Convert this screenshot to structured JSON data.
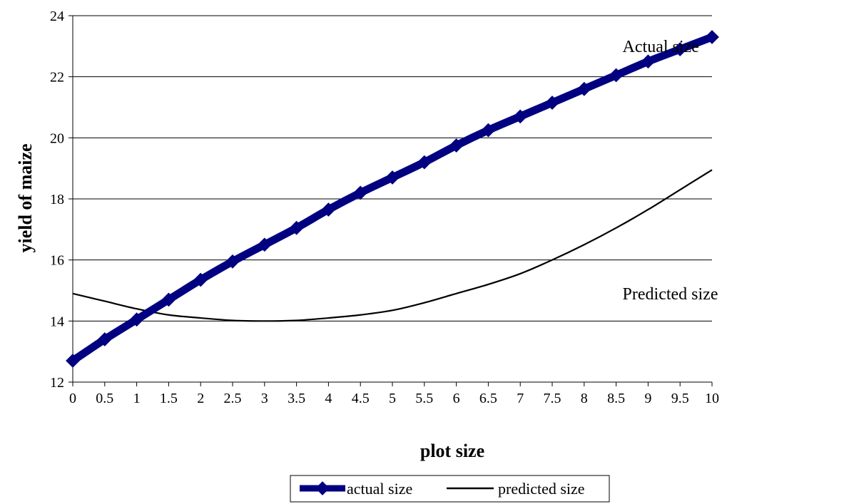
{
  "chart_data": {
    "type": "line",
    "title": "",
    "xlabel": "plot size",
    "ylabel": "yield of maize",
    "x": [
      0,
      0.5,
      1,
      1.5,
      2,
      2.5,
      3,
      3.5,
      4,
      4.5,
      5,
      5.5,
      6,
      6.5,
      7,
      7.5,
      8,
      8.5,
      9,
      9.5,
      10
    ],
    "x_tick_labels": [
      "0",
      "0.5",
      "1",
      "1.5",
      "2",
      "2.5",
      "3",
      "3.5",
      "4",
      "4.5",
      "5",
      "5.5",
      "6",
      "6.5",
      "7",
      "7.5",
      "8",
      "8.5",
      "9",
      "9.5",
      "10"
    ],
    "ylim": [
      12,
      24
    ],
    "y_ticks": [
      12,
      14,
      16,
      18,
      20,
      22,
      24
    ],
    "grid": "horizontal",
    "legend_position": "bottom",
    "series": [
      {
        "name": "actual size",
        "color": "#000080",
        "values": [
          12.7,
          13.4,
          14.05,
          14.7,
          15.35,
          15.95,
          16.5,
          17.05,
          17.65,
          18.2,
          18.7,
          19.2,
          19.75,
          20.25,
          20.7,
          21.15,
          21.6,
          22.05,
          22.5,
          22.9,
          23.3
        ]
      },
      {
        "name": "predicted size",
        "color": "#000000",
        "values": [
          14.9,
          14.65,
          14.4,
          14.2,
          14.1,
          14.02,
          14.0,
          14.02,
          14.1,
          14.2,
          14.35,
          14.6,
          14.9,
          15.2,
          15.55,
          16.0,
          16.5,
          17.05,
          17.65,
          18.3,
          18.95
        ]
      }
    ],
    "annotations": [
      {
        "text": "Actual size",
        "x": 8.6,
        "y": 23.0
      },
      {
        "text": "Predicted size",
        "x": 8.6,
        "y": 14.9
      }
    ]
  }
}
